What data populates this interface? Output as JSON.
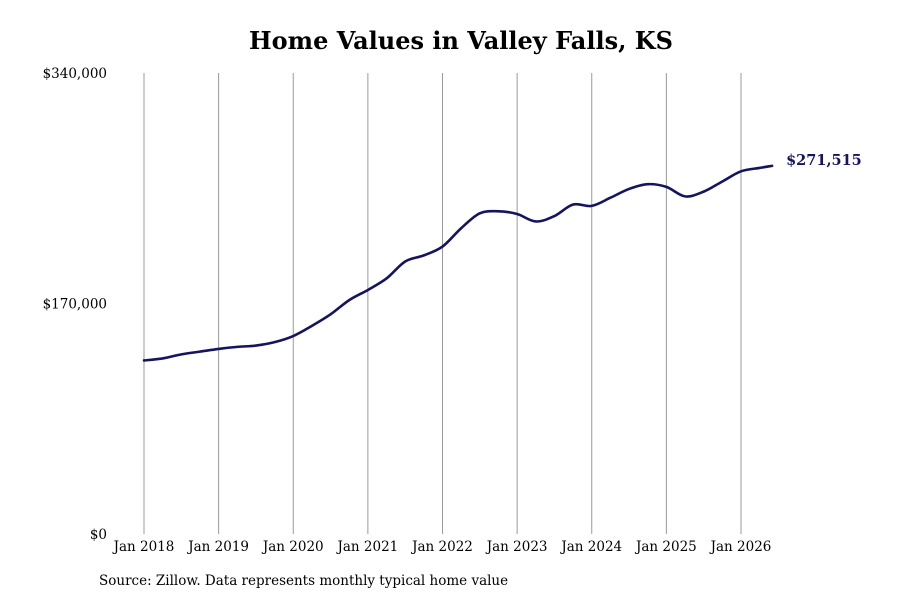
{
  "chart_data": {
    "type": "line",
    "title": "Home Values in Valley Falls, KS",
    "source": "Source: Zillow. Data represents monthly typical home value",
    "xlabel": "",
    "ylabel": "",
    "ylim": [
      0,
      340000
    ],
    "y_ticks": [
      {
        "value": 0,
        "label": "$0"
      },
      {
        "value": 170000,
        "label": "$170,000"
      },
      {
        "value": 340000,
        "label": "$340,000"
      }
    ],
    "x_ticks": [
      {
        "value": "2018-01",
        "label": "Jan 2018"
      },
      {
        "value": "2019-01",
        "label": "Jan 2019"
      },
      {
        "value": "2020-01",
        "label": "Jan 2020"
      },
      {
        "value": "2021-01",
        "label": "Jan 2021"
      },
      {
        "value": "2022-01",
        "label": "Jan 2022"
      },
      {
        "value": "2023-01",
        "label": "Jan 2023"
      },
      {
        "value": "2024-01",
        "label": "Jan 2024"
      },
      {
        "value": "2025-01",
        "label": "Jan 2025"
      },
      {
        "value": "2026-01",
        "label": "Jan 2026"
      }
    ],
    "grid": "vertical",
    "line_color": "#14145f",
    "grid_color": "#9a9a9a",
    "end_label": "$271,515",
    "series": [
      {
        "values": [
          {
            "x": "2018-01",
            "y": 128000
          },
          {
            "x": "2018-04",
            "y": 129500
          },
          {
            "x": "2018-07",
            "y": 132500
          },
          {
            "x": "2018-10",
            "y": 134500
          },
          {
            "x": "2019-01",
            "y": 136500
          },
          {
            "x": "2019-04",
            "y": 138000
          },
          {
            "x": "2019-07",
            "y": 139000
          },
          {
            "x": "2019-10",
            "y": 141500
          },
          {
            "x": "2020-01",
            "y": 146000
          },
          {
            "x": "2020-04",
            "y": 153500
          },
          {
            "x": "2020-07",
            "y": 162000
          },
          {
            "x": "2020-10",
            "y": 172500
          },
          {
            "x": "2021-01",
            "y": 180000
          },
          {
            "x": "2021-04",
            "y": 188500
          },
          {
            "x": "2021-07",
            "y": 201000
          },
          {
            "x": "2021-10",
            "y": 205500
          },
          {
            "x": "2022-01",
            "y": 212000
          },
          {
            "x": "2022-04",
            "y": 225500
          },
          {
            "x": "2022-07",
            "y": 236500
          },
          {
            "x": "2022-10",
            "y": 238000
          },
          {
            "x": "2023-01",
            "y": 236000
          },
          {
            "x": "2023-04",
            "y": 230500
          },
          {
            "x": "2023-07",
            "y": 234500
          },
          {
            "x": "2023-10",
            "y": 243000
          },
          {
            "x": "2024-01",
            "y": 242000
          },
          {
            "x": "2024-04",
            "y": 248000
          },
          {
            "x": "2024-07",
            "y": 254500
          },
          {
            "x": "2024-10",
            "y": 258000
          },
          {
            "x": "2025-01",
            "y": 256000
          },
          {
            "x": "2025-04",
            "y": 249000
          },
          {
            "x": "2025-07",
            "y": 252500
          },
          {
            "x": "2025-10",
            "y": 260000
          },
          {
            "x": "2026-01",
            "y": 267500
          },
          {
            "x": "2026-04",
            "y": 270000
          },
          {
            "x": "2026-06",
            "y": 271515
          }
        ]
      }
    ]
  }
}
